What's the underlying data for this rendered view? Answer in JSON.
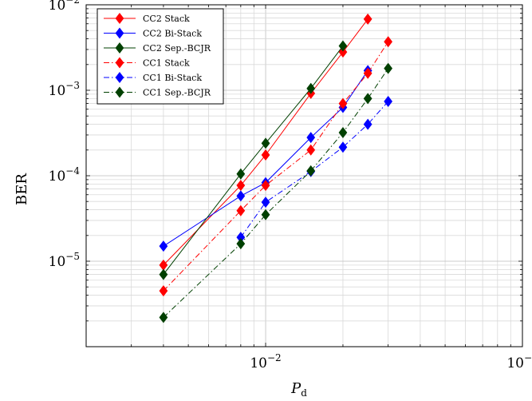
{
  "chart_data": {
    "type": "line",
    "title": "",
    "xlabel": "P",
    "xlabel_sub": "d",
    "ylabel": "BER",
    "x_scale": "log",
    "y_scale": "log",
    "xlim": [
      0.002,
      0.1
    ],
    "ylim": [
      1e-06,
      0.01
    ],
    "x_ticks": [
      {
        "value": 0.01,
        "base": "10",
        "exp": "−2"
      },
      {
        "value": 0.1,
        "base": "10",
        "exp": "−1"
      }
    ],
    "y_ticks": [
      {
        "value": 1e-05,
        "base": "10",
        "exp": "−5"
      },
      {
        "value": 0.0001,
        "base": "10",
        "exp": "−4"
      },
      {
        "value": 0.001,
        "base": "10",
        "exp": "−3"
      },
      {
        "value": 0.01,
        "base": "10",
        "exp": "−2"
      }
    ],
    "grid": true,
    "legend_position": "top-left",
    "series": [
      {
        "name": "CC2 Stack",
        "color": "#ff0000",
        "dash": "solid",
        "x": [
          0.004,
          0.008,
          0.01,
          0.015,
          0.02,
          0.025
        ],
        "y": [
          9e-06,
          7.7e-05,
          0.000175,
          0.00092,
          0.0028,
          0.0068
        ]
      },
      {
        "name": "CC2 Bi-Stack",
        "color": "#0000ff",
        "dash": "solid",
        "x": [
          0.004,
          0.008,
          0.01,
          0.015,
          0.02,
          0.025
        ],
        "y": [
          1.5e-05,
          5.8e-05,
          8.3e-05,
          0.00028,
          0.00063,
          0.0017
        ]
      },
      {
        "name": "CC2 Sep.-BCJR",
        "color": "#004000",
        "dash": "solid",
        "x": [
          0.004,
          0.008,
          0.01,
          0.015,
          0.02
        ],
        "y": [
          7e-06,
          0.000105,
          0.00024,
          0.00105,
          0.0033
        ]
      },
      {
        "name": "CC1 Stack",
        "color": "#ff0000",
        "dash": "dashdot",
        "x": [
          0.004,
          0.008,
          0.01,
          0.015,
          0.02,
          0.025,
          0.03
        ],
        "y": [
          4.5e-06,
          3.9e-05,
          7.7e-05,
          0.0002,
          0.0007,
          0.00158,
          0.0037
        ]
      },
      {
        "name": "CC1 Bi-Stack",
        "color": "#0000ff",
        "dash": "dashdot",
        "x": [
          0.008,
          0.01,
          0.015,
          0.02,
          0.025,
          0.03
        ],
        "y": [
          1.9e-05,
          4.9e-05,
          0.000112,
          0.000216,
          0.0004,
          0.00074
        ]
      },
      {
        "name": "CC1 Sep.-BCJR",
        "color": "#004000",
        "dash": "dashdot",
        "x": [
          0.004,
          0.008,
          0.01,
          0.015,
          0.02,
          0.025,
          0.03
        ],
        "y": [
          2.2e-06,
          1.6e-05,
          3.5e-05,
          0.000114,
          0.00032,
          0.0008,
          0.0018
        ]
      }
    ]
  }
}
